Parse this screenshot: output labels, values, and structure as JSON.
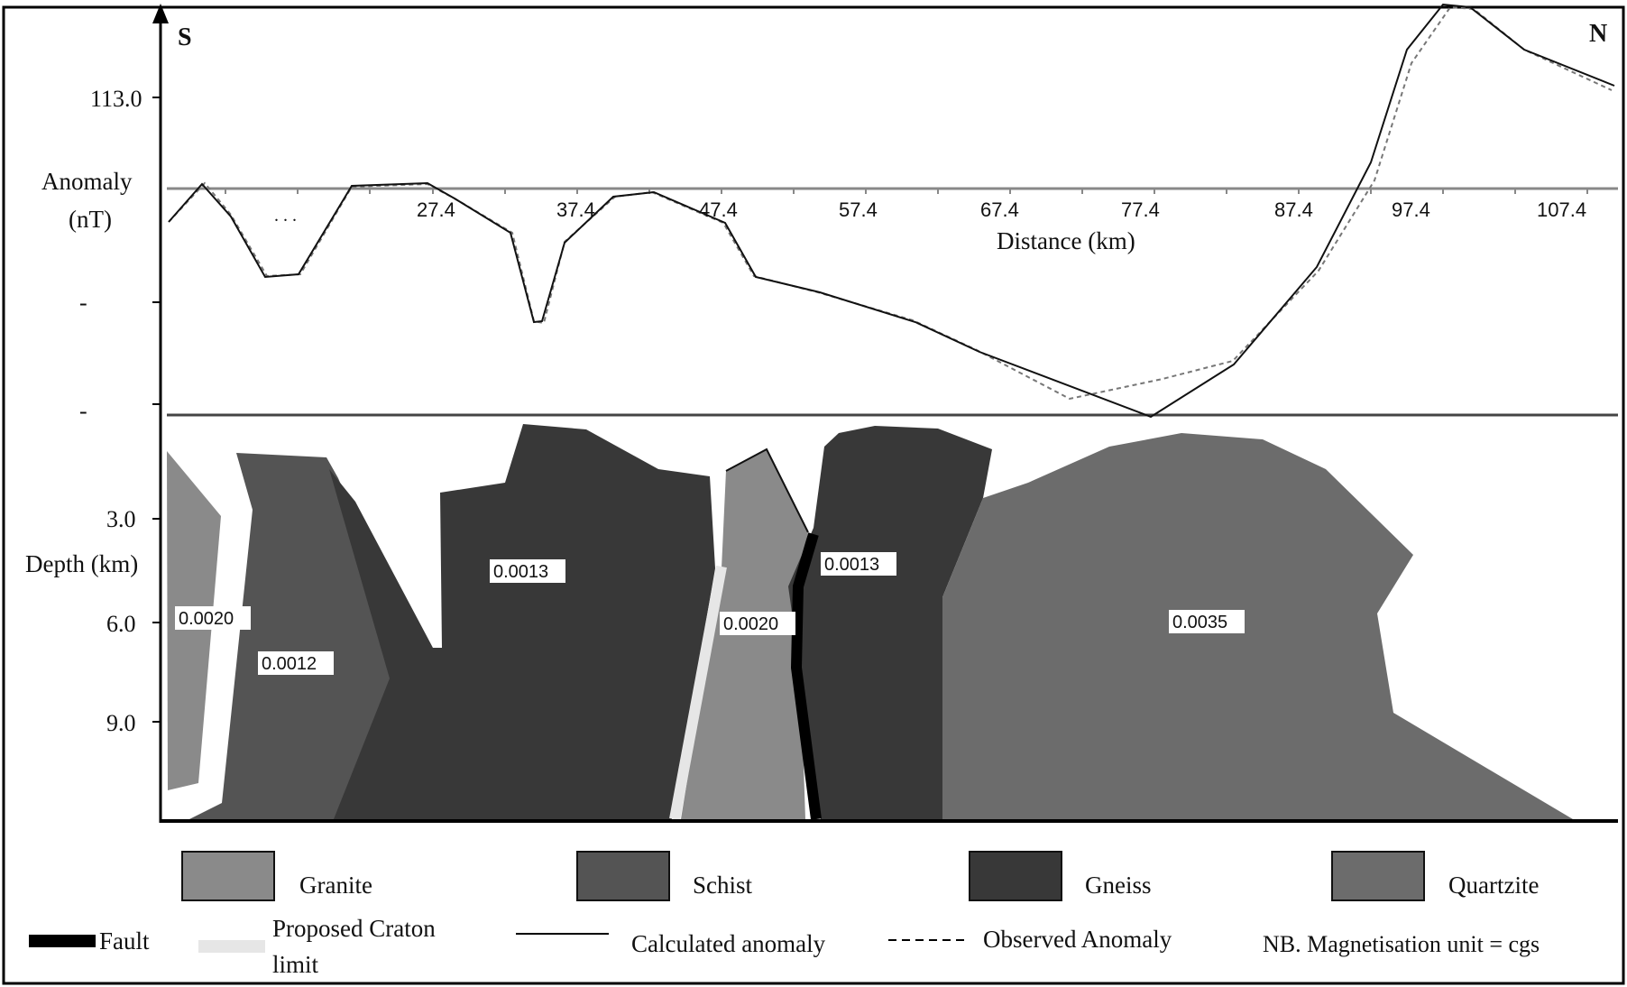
{
  "directions": {
    "south": "S",
    "north": "N"
  },
  "anomaly_axis": {
    "label_line1": "Anomaly",
    "label_line2": "(nT)",
    "tick_value": "113.0",
    "minor_tick_1": "-",
    "minor_tick_2": "-",
    "dots": ". . ."
  },
  "distance_axis": {
    "label": "Distance (km)",
    "ticks": [
      "27.4",
      "37.4",
      "47.4",
      "57.4",
      "67.4",
      "77.4",
      "87.4",
      "97.4",
      "107.4"
    ]
  },
  "depth_axis": {
    "label": "Depth (km)",
    "ticks": [
      "3.0",
      "6.0",
      "9.0"
    ]
  },
  "magnetisation_labels": {
    "granite_left": "0.0020",
    "schist": "0.0012",
    "gneiss_left": "0.0013",
    "granite_mid": "0.0020",
    "gneiss_right": "0.0013",
    "quartzite": "0.0035"
  },
  "legend": {
    "granite": "Granite",
    "schist": "Schist",
    "gneiss": "Gneiss",
    "quartzite": "Quartzite",
    "fault": "Fault",
    "craton_line1": "Proposed Craton",
    "craton_line2": "limit",
    "calculated": "Calculated anomaly",
    "observed": "Observed Anomaly",
    "note": "NB. Magnetisation unit  =  cgs"
  },
  "colors": {
    "granite": "#8a8a8a",
    "schist": "#545454",
    "gneiss": "#383838",
    "quartzite": "#6c6c6c",
    "fault": "#000000",
    "craton_limit": "#e6e6e6"
  }
}
